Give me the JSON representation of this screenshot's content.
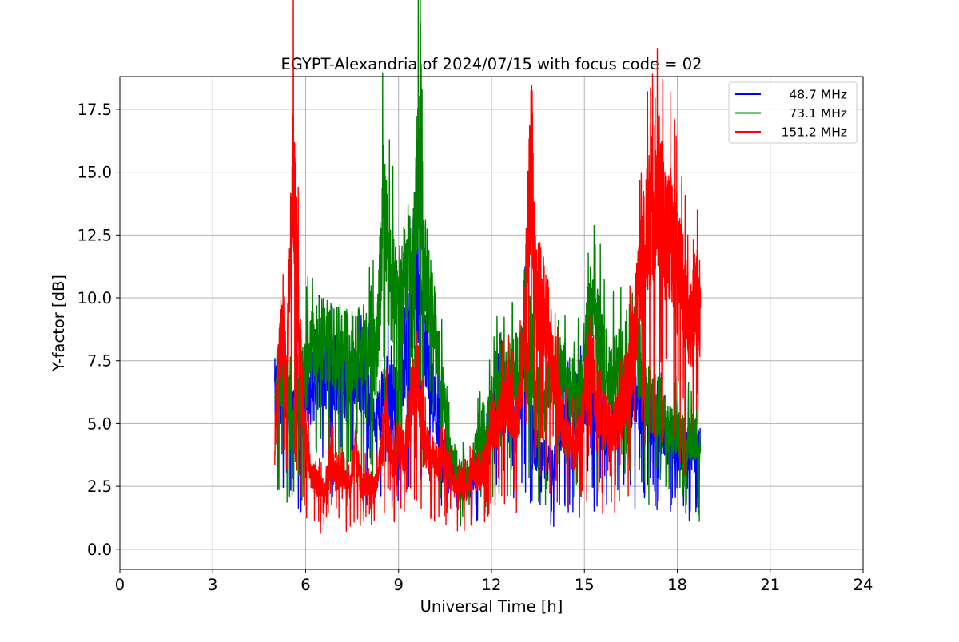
{
  "chart_data": {
    "type": "line",
    "title": "EGYPT-Alexandria of 2024/07/15 with focus code = 02",
    "xlabel": "Universal Time [h]",
    "ylabel": "Y-factor [dB]",
    "xlim": [
      0,
      24
    ],
    "ylim": [
      -0.8,
      18.8
    ],
    "xticks": [
      0,
      3,
      6,
      9,
      12,
      15,
      18,
      21,
      24
    ],
    "xtick_labels": [
      "0",
      "3",
      "6",
      "9",
      "12",
      "15",
      "18",
      "21",
      "24"
    ],
    "yticks": [
      0.0,
      2.5,
      5.0,
      7.5,
      10.0,
      12.5,
      15.0,
      17.5
    ],
    "ytick_labels": [
      "0.0",
      "2.5",
      "5.0",
      "7.5",
      "10.0",
      "12.5",
      "15.0",
      "17.5"
    ],
    "grid": true,
    "legend_position": "top-right",
    "series": [
      {
        "name": "48.7 MHz",
        "color": "#0000ff",
        "x": [
          5.0,
          5.3,
          5.6,
          5.9,
          6.2,
          6.5,
          6.8,
          7.1,
          7.4,
          7.7,
          8.0,
          8.3,
          8.6,
          8.9,
          9.2,
          9.5,
          9.8,
          10.1,
          10.4,
          10.7,
          11.0,
          11.3,
          11.6,
          11.9,
          12.2,
          12.5,
          12.8,
          13.1,
          13.4,
          13.7,
          14.0,
          14.3,
          14.6,
          14.9,
          15.2,
          15.5,
          15.8,
          16.1,
          16.4,
          16.7,
          17.0,
          17.3,
          17.6,
          17.9,
          18.2,
          18.5,
          18.75
        ],
        "y": [
          6.2,
          6.5,
          5.4,
          5.8,
          6.4,
          6.9,
          7.3,
          6.8,
          6.2,
          6.9,
          6.6,
          5.1,
          6.4,
          6.0,
          7.5,
          10.2,
          8.8,
          6.1,
          4.2,
          3.2,
          2.4,
          2.6,
          3.5,
          4.1,
          6.0,
          5.4,
          5.3,
          8.0,
          4.0,
          3.6,
          3.2,
          5.2,
          6.0,
          5.5,
          6.3,
          5.2,
          4.4,
          5.5,
          6.3,
          5.9,
          5.6,
          5.2,
          4.5,
          4.0,
          3.8,
          3.9,
          4.0
        ]
      },
      {
        "name": "73.1 MHz",
        "color": "#008000",
        "x": [
          5.0,
          5.3,
          5.6,
          5.9,
          6.2,
          6.5,
          6.8,
          7.1,
          7.4,
          7.7,
          8.0,
          8.3,
          8.5,
          8.7,
          8.9,
          9.2,
          9.5,
          9.7,
          9.8,
          10.1,
          10.4,
          10.7,
          11.0,
          11.3,
          11.6,
          11.9,
          12.2,
          12.5,
          12.8,
          13.1,
          13.4,
          13.7,
          14.0,
          14.3,
          14.6,
          14.9,
          15.2,
          15.5,
          15.8,
          16.1,
          16.4,
          16.7,
          17.0,
          17.3,
          17.6,
          17.9,
          18.2,
          18.5,
          18.75
        ],
        "y": [
          6.5,
          7.0,
          6.2,
          6.6,
          7.8,
          8.3,
          8.0,
          8.1,
          7.8,
          8.2,
          7.9,
          7.6,
          13.5,
          11.0,
          9.8,
          10.6,
          11.5,
          17.9,
          11.3,
          9.2,
          6.2,
          3.5,
          3.1,
          2.8,
          4.6,
          5.0,
          6.8,
          6.5,
          7.4,
          7.6,
          6.0,
          5.9,
          6.8,
          7.0,
          6.2,
          6.4,
          9.6,
          8.2,
          6.6,
          7.3,
          8.1,
          7.9,
          6.2,
          5.4,
          5.0,
          4.7,
          4.5,
          4.4,
          4.2
        ]
      },
      {
        "name": "151.2 MHz",
        "color": "#ff0000",
        "x": [
          5.0,
          5.2,
          5.4,
          5.6,
          5.8,
          6.0,
          6.2,
          6.4,
          6.6,
          6.8,
          7.0,
          7.2,
          7.4,
          7.6,
          7.8,
          8.0,
          8.2,
          8.4,
          8.6,
          8.8,
          9.0,
          9.2,
          9.4,
          9.6,
          9.8,
          10.0,
          10.2,
          10.4,
          10.6,
          10.8,
          11.0,
          11.2,
          11.4,
          11.6,
          11.8,
          12.0,
          12.2,
          12.4,
          12.6,
          12.8,
          13.0,
          13.2,
          13.3,
          13.4,
          13.6,
          13.8,
          14.0,
          14.2,
          14.4,
          14.6,
          14.8,
          15.0,
          15.2,
          15.4,
          15.6,
          15.8,
          16.0,
          16.2,
          16.4,
          16.6,
          16.8,
          17.0,
          17.2,
          17.4,
          17.6,
          17.8,
          18.0,
          18.2,
          18.4,
          18.6,
          18.75
        ],
        "y": [
          4.2,
          8.5,
          7.0,
          15.5,
          8.2,
          4.5,
          2.9,
          2.6,
          2.2,
          3.8,
          2.8,
          3.2,
          2.4,
          4.2,
          2.4,
          2.7,
          2.3,
          3.6,
          5.2,
          3.4,
          4.2,
          3.8,
          6.0,
          7.2,
          4.4,
          3.8,
          3.6,
          3.4,
          3.2,
          2.6,
          2.8,
          2.3,
          3.3,
          2.8,
          3.6,
          5.2,
          4.6,
          6.4,
          5.6,
          4.8,
          6.8,
          13.2,
          15.6,
          10.4,
          10.0,
          9.4,
          7.0,
          5.4,
          4.4,
          4.0,
          4.2,
          6.2,
          7.8,
          6.0,
          5.2,
          4.8,
          4.8,
          5.5,
          7.0,
          8.2,
          10.8,
          12.4,
          13.6,
          14.4,
          12.8,
          12.4,
          11.0,
          10.6,
          8.4,
          10.0,
          9.6
        ]
      }
    ]
  }
}
